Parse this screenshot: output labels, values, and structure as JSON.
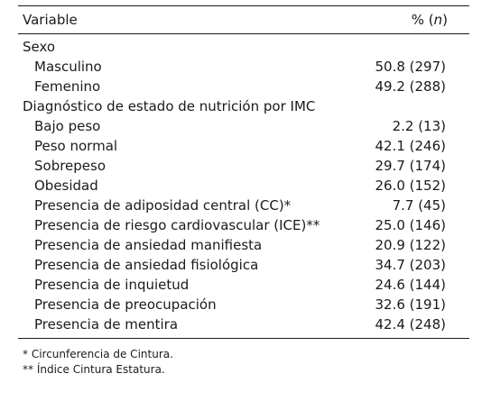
{
  "table": {
    "header": {
      "variable": "Variable",
      "value_prefix": "% (",
      "value_n": "n",
      "value_suffix": ")"
    },
    "rows": [
      {
        "label": "Sexo",
        "value": ""
      },
      {
        "label": "Masculino",
        "value": "50.8 (297)"
      },
      {
        "label": "Femenino",
        "value": "49.2 (288)"
      },
      {
        "label": "Diagnóstico de estado de nutrición por IMC",
        "value": ""
      },
      {
        "label": "Bajo peso",
        "value": "2.2 (13)"
      },
      {
        "label": "Peso normal",
        "value": "42.1 (246)"
      },
      {
        "label": "Sobrepeso",
        "value": "29.7 (174)"
      },
      {
        "label": "Obesidad",
        "value": "26.0 (152)"
      },
      {
        "label": "Presencia de adiposidad central (CC)*",
        "value": "7.7 (45)"
      },
      {
        "label": "Presencia de riesgo cardiovascular (ICE)**",
        "value": "25.0 (146)"
      },
      {
        "label": "Presencia de ansiedad manifiesta",
        "value": "20.9 (122)"
      },
      {
        "label": "Presencia de ansiedad fisiológica",
        "value": "34.7 (203)"
      },
      {
        "label": "Presencia de inquietud",
        "value": "24.6 (144)"
      },
      {
        "label": "Presencia de preocupación",
        "value": "32.6 (191)"
      },
      {
        "label": "Presencia de mentira",
        "value": "42.4 (248)"
      }
    ]
  },
  "footnotes": [
    "* Circunferencia de Cintura.",
    "** Índice Cintura Estatura."
  ]
}
